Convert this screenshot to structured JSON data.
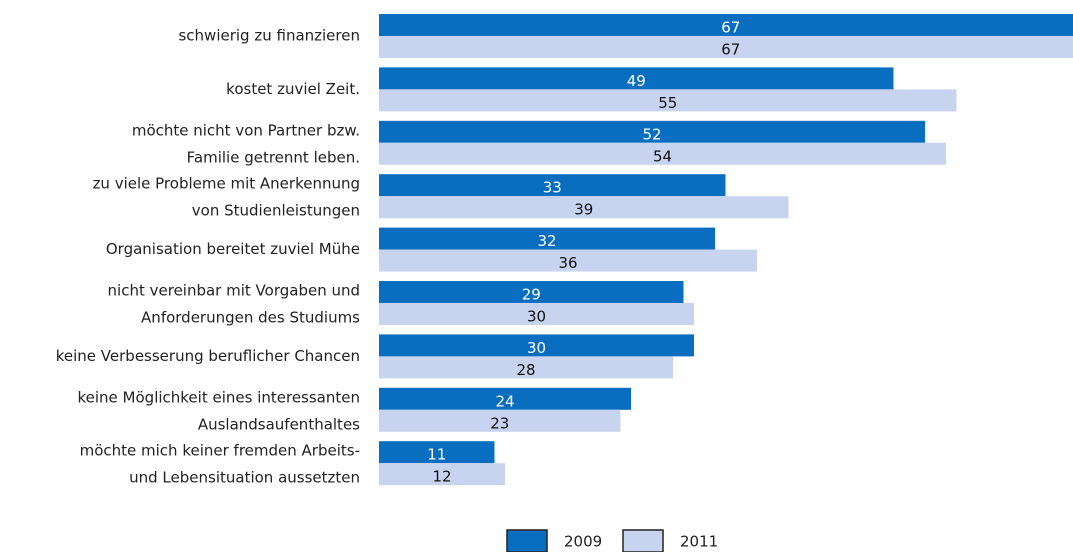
{
  "chart_data": {
    "type": "barh",
    "categories": [
      [
        "schwierig zu finanzieren"
      ],
      [
        "kostet zuviel Zeit."
      ],
      [
        "möchte nicht von Partner bzw.",
        "Familie getrennt leben."
      ],
      [
        "zu viele Probleme mit Anerkennung",
        "von Studienleistungen"
      ],
      [
        "Organisation bereitet zuviel Mühe"
      ],
      [
        "nicht vereinbar mit Vorgaben und",
        "Anforderungen des Studiums"
      ],
      [
        "keine Verbesserung beruflicher Chancen"
      ],
      [
        "keine Möglichkeit eines interessanten",
        "Auslandsaufenthaltes"
      ],
      [
        "möchte mich keiner fremden Arbeits-",
        "und Lebensituation aussetzten"
      ]
    ],
    "series": [
      {
        "name": "2009",
        "color": "#0a6ec0",
        "label_color": "#ffffff",
        "values": [
          67,
          49,
          52,
          33,
          32,
          29,
          30,
          24,
          11
        ]
      },
      {
        "name": "2011",
        "color": "#c8d4ef",
        "label_color": "#111111",
        "values": [
          67,
          55,
          54,
          39,
          36,
          30,
          28,
          23,
          12
        ]
      }
    ]
  }
}
